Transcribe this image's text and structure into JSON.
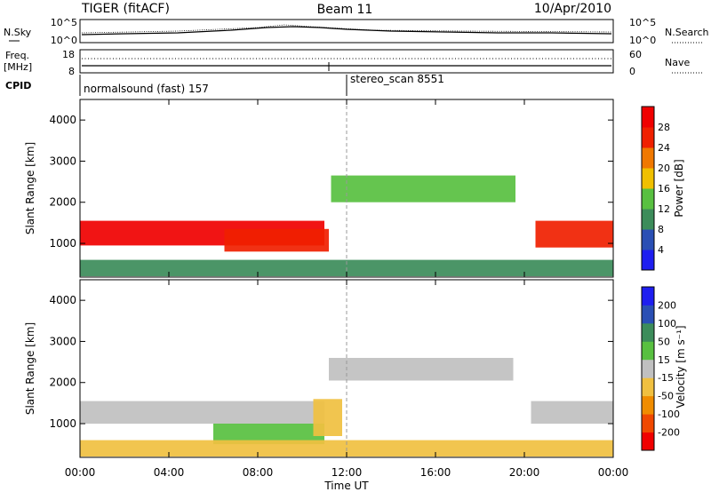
{
  "header": {
    "radar": "TIGER (fitACF)",
    "beam": "Beam 11",
    "date": "10/Apr/2010"
  },
  "noise_panel": {
    "left_label": "N.Sky",
    "right_label": "N.Search",
    "left_ticks": [
      "10^5",
      "10^0"
    ],
    "right_ticks": [
      "10^5",
      "10^0"
    ]
  },
  "freq_panel": {
    "left_label_1": "Freq.",
    "left_label_2": "[MHz]",
    "right_label": "Nave",
    "left_ticks": [
      "18",
      "8"
    ],
    "right_ticks": [
      "60",
      "0"
    ]
  },
  "cpid_panel": {
    "label": "CPID",
    "segments": [
      {
        "name": "normalsound (fast) 157",
        "start": "00:00"
      },
      {
        "name": "stereo_scan 8551",
        "start": "12:00"
      }
    ]
  },
  "colors": {
    "power": [
      "#1e1ef0",
      "#2a4fb4",
      "#3c8c5a",
      "#58c040",
      "#f0c000",
      "#f07800",
      "#f02000",
      "#f00000"
    ],
    "velocity": [
      "#f00000",
      "#f04800",
      "#f08c00",
      "#f0c040",
      "#c0c0c0",
      "#58c040",
      "#3c8c5a",
      "#2a4fb4",
      "#1e1ef0"
    ]
  },
  "chart_data": [
    {
      "type": "heatmap",
      "title": "Power",
      "xlabel": "Time UT",
      "ylabel": "Slant Range [km]",
      "x_ticks": [
        "00:00",
        "04:00",
        "08:00",
        "12:00",
        "16:00",
        "20:00",
        "00:00"
      ],
      "y_ticks": [
        "1000",
        "2000",
        "3000",
        "4000"
      ],
      "xlim": [
        0,
        24
      ],
      "ylim": [
        180,
        4500
      ],
      "colorbar": {
        "label": "Power [dB]",
        "ticks": [
          "4",
          "8",
          "12",
          "16",
          "20",
          "24",
          "28"
        ],
        "range": [
          0,
          32
        ]
      },
      "regions": [
        {
          "x": [
            0,
            11
          ],
          "y": [
            950,
            1550
          ],
          "value": 28
        },
        {
          "x": [
            6.5,
            11.2
          ],
          "y": [
            800,
            1350
          ],
          "value": 26
        },
        {
          "x": [
            11.3,
            19.6
          ],
          "y": [
            2000,
            2650
          ],
          "value": 12
        },
        {
          "x": [
            20.5,
            24
          ],
          "y": [
            900,
            1550
          ],
          "value": 26
        },
        {
          "x": [
            0,
            24
          ],
          "y": [
            200,
            600
          ],
          "value": 10
        }
      ]
    },
    {
      "type": "heatmap",
      "title": "Velocity",
      "xlabel": "Time UT",
      "ylabel": "Slant Range [km]",
      "x_ticks": [
        "00:00",
        "04:00",
        "08:00",
        "12:00",
        "16:00",
        "20:00",
        "00:00"
      ],
      "y_ticks": [
        "1000",
        "2000",
        "3000",
        "4000"
      ],
      "xlim": [
        0,
        24
      ],
      "ylim": [
        180,
        4500
      ],
      "colorbar": {
        "label": "Velocity [m s⁻¹]",
        "ticks": [
          "-200",
          "-100",
          "-50",
          "-15",
          "15",
          "50",
          "100",
          "200"
        ],
        "range": [
          -250,
          250
        ]
      },
      "regions": [
        {
          "x": [
            0,
            11
          ],
          "y": [
            1000,
            1550
          ],
          "value": 0
        },
        {
          "x": [
            11.2,
            19.5
          ],
          "y": [
            2050,
            2600
          ],
          "value": 0
        },
        {
          "x": [
            6,
            11
          ],
          "y": [
            500,
            1000
          ],
          "value": 40
        },
        {
          "x": [
            10.5,
            11.8
          ],
          "y": [
            700,
            1600
          ],
          "value": -60
        },
        {
          "x": [
            20.3,
            24
          ],
          "y": [
            1000,
            1550
          ],
          "value": 0
        },
        {
          "x": [
            0,
            24
          ],
          "y": [
            200,
            600
          ],
          "value": -80
        }
      ]
    }
  ]
}
